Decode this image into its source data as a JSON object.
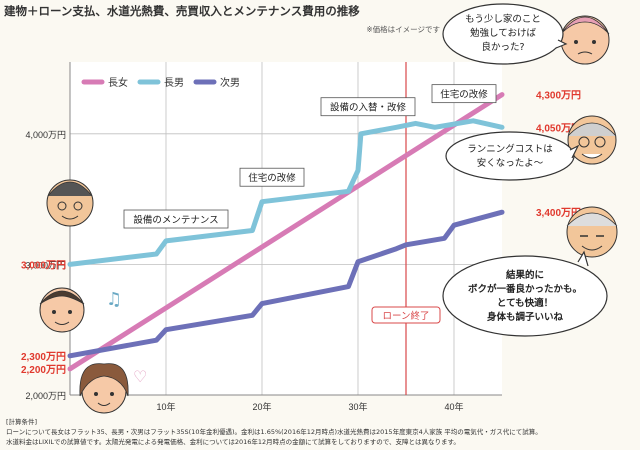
{
  "title": "建物＋ローン支払、水道光熱費、売買収入とメンテナンス費用の推移",
  "note": "※価格はイメージです",
  "footnote": {
    "heading": "[計算条件]",
    "line1": "ローンについて長女はフラット35、長男・次男はフラット35S(10年金利優遇)。金利は1.65%(2016年12月時点)水道光熱費は2015年度東京4人家族 平均の電気代・ガス代にて試算。",
    "line2": "水道料金はLIXILでの試算値です。太陽光発電による発電価格、金利については2016年12月時点の金額にて試算をしておりますので、支障とは異なります。"
  },
  "bubbles": {
    "top": [
      "もう少し家のこと",
      "勉強しておけば",
      "良かった?"
    ],
    "mid": [
      "ランニングコストは",
      "安くなったよ～"
    ],
    "bottom": [
      "結果的に",
      "ボクが一番良かったかも。",
      "とても快適！",
      "身体も調子いいね"
    ]
  },
  "colors": {
    "pink": "#d77bb5",
    "blue": "#7fc3d9",
    "purple": "#6d70b8",
    "red": "#e0392e",
    "marker": "#d9484a",
    "grid": "#bfbfbf",
    "bubble_border": "#333333"
  },
  "chart_data": {
    "type": "line",
    "title": "建物＋ローン支払、水道光熱費、売買収入とメンテナンス費用の推移",
    "xlabel": "",
    "ylabel": "",
    "xlim": [
      0,
      45
    ],
    "ylim": [
      2000,
      4550
    ],
    "x_ticks": [
      10,
      20,
      30,
      40
    ],
    "x_tick_labels": [
      "10年",
      "20年",
      "30年",
      "40年"
    ],
    "y_ticks": [
      2000,
      3000,
      4000
    ],
    "y_tick_labels": [
      "2,000万円",
      "3,000万円",
      "4,000万円"
    ],
    "legend_position": "top-left",
    "series": [
      {
        "name": "長女",
        "color_key": "pink",
        "start_label": "2,200万円",
        "end_label": "4,300万円",
        "points": [
          [
            0,
            2200
          ],
          [
            45,
            4300
          ]
        ]
      },
      {
        "name": "長男",
        "color_key": "blue",
        "start_label": "3,000万円",
        "end_label": "4,050万円",
        "points": [
          [
            0,
            3000
          ],
          [
            9,
            3080
          ],
          [
            10,
            3180
          ],
          [
            19,
            3260
          ],
          [
            20,
            3480
          ],
          [
            29,
            3560
          ],
          [
            30,
            3720
          ],
          [
            30.3,
            4000
          ],
          [
            34,
            4050
          ],
          [
            36,
            4080
          ],
          [
            38,
            4050
          ],
          [
            42,
            4100
          ],
          [
            45,
            4050
          ]
        ]
      },
      {
        "name": "次男",
        "color_key": "purple",
        "start_label": "2,300万円",
        "end_label": "3,400万円",
        "points": [
          [
            0,
            2300
          ],
          [
            9,
            2420
          ],
          [
            10,
            2500
          ],
          [
            19,
            2610
          ],
          [
            20,
            2700
          ],
          [
            29,
            2830
          ],
          [
            30,
            3020
          ],
          [
            34,
            3120
          ],
          [
            35,
            3150
          ],
          [
            39,
            3200
          ],
          [
            40,
            3300
          ],
          [
            45,
            3400
          ]
        ]
      }
    ],
    "annotations": [
      {
        "text": "設備のメンテナンス",
        "x": 10,
        "y": 3340
      },
      {
        "text": "住宅の改修",
        "x": 20,
        "y": 3660
      },
      {
        "text": "設備の入替・改修",
        "x": 30,
        "y": 4200
      },
      {
        "text": "住宅の改修",
        "x": 40,
        "y": 4300
      }
    ],
    "vertical_marker": {
      "x": 35,
      "label": "ローン終了"
    }
  }
}
